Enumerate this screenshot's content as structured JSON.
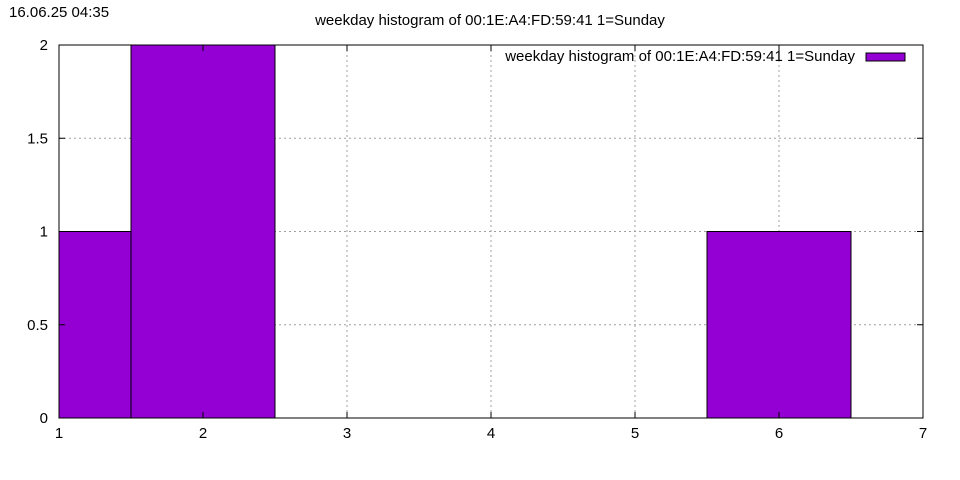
{
  "timestamp": "16.06.25 04:35",
  "chart_data": {
    "type": "bar",
    "title": "weekday histogram of 00:1E:A4:FD:59:41 1=Sunday",
    "xlabel": "",
    "ylabel": "",
    "xlim": [
      1,
      7
    ],
    "ylim": [
      0,
      2
    ],
    "xticks": [
      1,
      2,
      3,
      4,
      5,
      6,
      7
    ],
    "yticks": [
      0,
      0.5,
      1,
      1.5,
      2
    ],
    "ytick_labels": [
      "0",
      "0.5",
      "1",
      "1.5",
      "2"
    ],
    "grid": true,
    "legend_position": "top-right",
    "bar_width": 1,
    "series": [
      {
        "name": "weekday histogram of 00:1E:A4:FD:59:41 1=Sunday",
        "color": "#9400d3",
        "x": [
          1,
          2,
          6
        ],
        "values": [
          1,
          2,
          1
        ]
      }
    ]
  }
}
